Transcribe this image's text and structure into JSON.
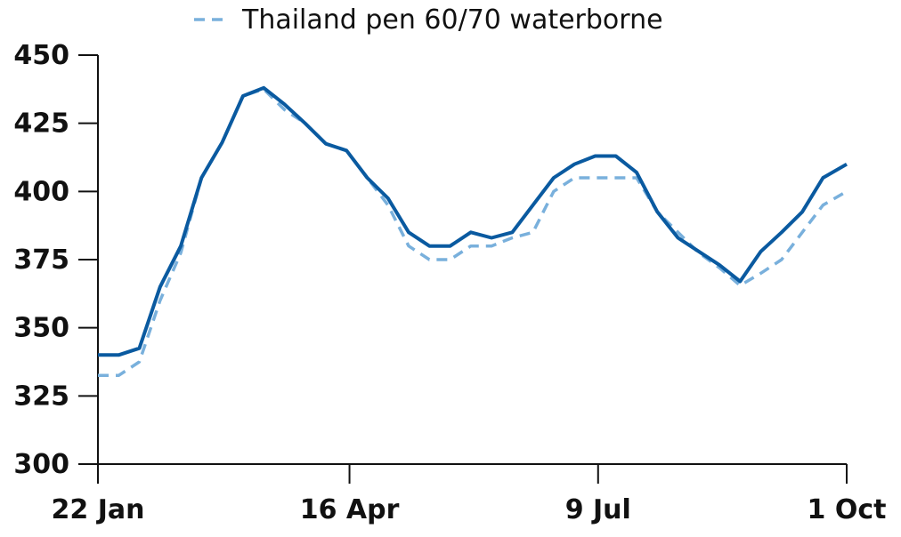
{
  "colors": {
    "series_solid": "#0a5aa0",
    "series_dashed": "#79b0dc",
    "axis": "#111111"
  },
  "legend": {
    "label": "Thailand pen 60/70 waterborne",
    "placement": "top-center"
  },
  "chart_data": {
    "type": "line",
    "ylim": [
      300,
      450
    ],
    "yticks": [
      300,
      325,
      350,
      375,
      400,
      425,
      450
    ],
    "xlim": [
      "2024-01-22",
      "2024-10-01"
    ],
    "xticks": [
      {
        "x": "2024-01-22",
        "label": "22 Jan"
      },
      {
        "x": "2024-04-16",
        "label": "16 Apr"
      },
      {
        "x": "2024-07-09",
        "label": "9 Jul"
      },
      {
        "x": "2024-10-01",
        "label": "1 Oct"
      }
    ],
    "grid": false,
    "series": [
      {
        "style": "solid",
        "points": [
          {
            "x": "2024-01-22",
            "y": 340
          },
          {
            "x": "2024-01-29",
            "y": 340
          },
          {
            "x": "2024-02-05",
            "y": 342.5
          },
          {
            "x": "2024-02-12",
            "y": 365
          },
          {
            "x": "2024-02-19",
            "y": 380
          },
          {
            "x": "2024-02-26",
            "y": 405
          },
          {
            "x": "2024-03-04",
            "y": 418
          },
          {
            "x": "2024-03-11",
            "y": 435
          },
          {
            "x": "2024-03-18",
            "y": 438
          },
          {
            "x": "2024-03-25",
            "y": 432
          },
          {
            "x": "2024-04-01",
            "y": 425
          },
          {
            "x": "2024-04-08",
            "y": 417.5
          },
          {
            "x": "2024-04-15",
            "y": 415
          },
          {
            "x": "2024-04-22",
            "y": 405
          },
          {
            "x": "2024-04-29",
            "y": 397.5
          },
          {
            "x": "2024-05-06",
            "y": 385
          },
          {
            "x": "2024-05-13",
            "y": 380
          },
          {
            "x": "2024-05-20",
            "y": 380
          },
          {
            "x": "2024-05-27",
            "y": 385
          },
          {
            "x": "2024-06-03",
            "y": 383
          },
          {
            "x": "2024-06-10",
            "y": 385
          },
          {
            "x": "2024-06-17",
            "y": 395
          },
          {
            "x": "2024-06-24",
            "y": 405
          },
          {
            "x": "2024-07-01",
            "y": 410
          },
          {
            "x": "2024-07-08",
            "y": 413
          },
          {
            "x": "2024-07-15",
            "y": 413
          },
          {
            "x": "2024-07-22",
            "y": 407
          },
          {
            "x": "2024-07-29",
            "y": 392.5
          },
          {
            "x": "2024-08-05",
            "y": 383
          },
          {
            "x": "2024-08-12",
            "y": 378
          },
          {
            "x": "2024-08-19",
            "y": 373
          },
          {
            "x": "2024-08-26",
            "y": 367
          },
          {
            "x": "2024-09-02",
            "y": 378
          },
          {
            "x": "2024-09-09",
            "y": 385
          },
          {
            "x": "2024-09-16",
            "y": 392.5
          },
          {
            "x": "2024-09-23",
            "y": 405
          },
          {
            "x": "2024-10-01",
            "y": 410
          }
        ]
      },
      {
        "name": "Thailand pen 60/70 waterborne",
        "style": "dashed",
        "points": [
          {
            "x": "2024-01-22",
            "y": 332.5
          },
          {
            "x": "2024-01-29",
            "y": 332.5
          },
          {
            "x": "2024-02-05",
            "y": 337.5
          },
          {
            "x": "2024-02-12",
            "y": 360
          },
          {
            "x": "2024-02-19",
            "y": 377.5
          },
          {
            "x": "2024-02-26",
            "y": 405
          },
          {
            "x": "2024-03-04",
            "y": 418
          },
          {
            "x": "2024-03-11",
            "y": 435
          },
          {
            "x": "2024-03-18",
            "y": 437.5
          },
          {
            "x": "2024-03-25",
            "y": 430
          },
          {
            "x": "2024-04-01",
            "y": 425
          },
          {
            "x": "2024-04-08",
            "y": 417.5
          },
          {
            "x": "2024-04-15",
            "y": 415
          },
          {
            "x": "2024-04-22",
            "y": 405
          },
          {
            "x": "2024-04-29",
            "y": 395
          },
          {
            "x": "2024-05-06",
            "y": 380
          },
          {
            "x": "2024-05-13",
            "y": 375
          },
          {
            "x": "2024-05-20",
            "y": 375
          },
          {
            "x": "2024-05-27",
            "y": 380
          },
          {
            "x": "2024-06-03",
            "y": 380
          },
          {
            "x": "2024-06-10",
            "y": 383
          },
          {
            "x": "2024-06-17",
            "y": 385
          },
          {
            "x": "2024-06-24",
            "y": 400
          },
          {
            "x": "2024-07-01",
            "y": 405
          },
          {
            "x": "2024-07-08",
            "y": 405
          },
          {
            "x": "2024-07-15",
            "y": 405
          },
          {
            "x": "2024-07-22",
            "y": 405
          },
          {
            "x": "2024-07-29",
            "y": 392.5
          },
          {
            "x": "2024-08-05",
            "y": 385
          },
          {
            "x": "2024-08-12",
            "y": 377.5
          },
          {
            "x": "2024-08-19",
            "y": 372
          },
          {
            "x": "2024-08-26",
            "y": 365.5
          },
          {
            "x": "2024-09-02",
            "y": 370
          },
          {
            "x": "2024-09-09",
            "y": 375
          },
          {
            "x": "2024-09-16",
            "y": 385
          },
          {
            "x": "2024-09-23",
            "y": 395
          },
          {
            "x": "2024-10-01",
            "y": 400
          }
        ]
      }
    ]
  }
}
